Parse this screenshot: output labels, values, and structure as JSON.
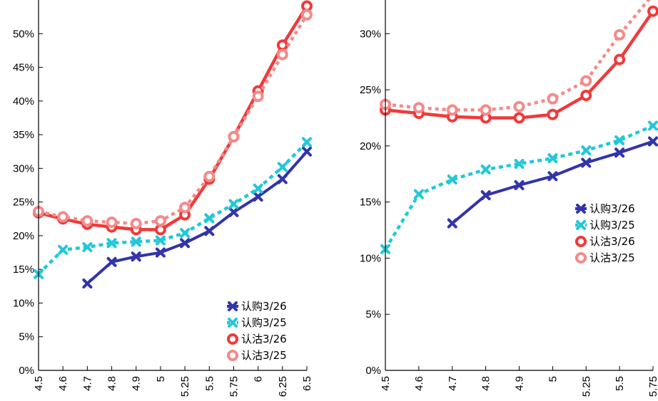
{
  "colors": {
    "call_326": "#3333aa",
    "call_325": "#22c8d8",
    "put_326": "#f03a3a",
    "put_325": "#f58a8a",
    "axis": "#000000"
  },
  "chart_data": [
    {
      "type": "line",
      "title": "",
      "xlabel": "",
      "ylabel": "",
      "categories": [
        "4.5",
        "4.6",
        "4.7",
        "4.8",
        "4.9",
        "5",
        "5.25",
        "5.5",
        "5.75",
        "6",
        "6.25",
        "6.5"
      ],
      "ylim": [
        0,
        55
      ],
      "yticks": [
        0,
        5,
        10,
        15,
        20,
        25,
        30,
        35,
        40,
        45,
        50
      ],
      "ytick_labels": [
        "0%",
        "5%",
        "10%",
        "15%",
        "20%",
        "25%",
        "30%",
        "35%",
        "40%",
        "45%",
        "50%"
      ],
      "legend_position": "bottom-right",
      "series": [
        {
          "name": "认购3/26",
          "style": "call_326",
          "values": [
            null,
            null,
            12.9,
            16.1,
            16.9,
            17.5,
            18.9,
            20.7,
            23.5,
            25.8,
            28.4,
            32.5
          ]
        },
        {
          "name": "认购3/25",
          "style": "call_325",
          "values": [
            14.3,
            17.9,
            18.3,
            18.9,
            19.1,
            19.3,
            20.4,
            22.6,
            24.7,
            27.0,
            30.2,
            33.9
          ]
        },
        {
          "name": "认沽3/26",
          "style": "put_326",
          "values": [
            23.4,
            22.5,
            21.7,
            21.3,
            20.9,
            20.9,
            23.1,
            28.4,
            34.7,
            41.5,
            48.3,
            54.1
          ]
        },
        {
          "name": "认沽3/25",
          "style": "put_325",
          "values": [
            23.6,
            22.8,
            22.2,
            22.0,
            21.8,
            22.2,
            24.2,
            28.8,
            34.7,
            40.7,
            46.9,
            52.8
          ]
        }
      ]
    },
    {
      "type": "line",
      "title": "",
      "xlabel": "",
      "ylabel": "",
      "categories": [
        "4.5",
        "4.6",
        "4.7",
        "4.8",
        "4.9",
        "5",
        "5.25",
        "5.5",
        "5.75"
      ],
      "ylim": [
        0,
        33
      ],
      "yticks": [
        0,
        5,
        10,
        15,
        20,
        25,
        30
      ],
      "ytick_labels": [
        "0%",
        "5%",
        "10%",
        "15%",
        "20%",
        "25%",
        "30%"
      ],
      "legend_position": "center-right",
      "series": [
        {
          "name": "认购3/26",
          "style": "call_326",
          "values": [
            null,
            null,
            13.1,
            15.6,
            16.5,
            17.3,
            18.5,
            19.4,
            20.4
          ]
        },
        {
          "name": "认购3/25",
          "style": "call_325",
          "values": [
            10.8,
            15.7,
            17.0,
            17.9,
            18.4,
            18.9,
            19.6,
            20.5,
            21.8
          ]
        },
        {
          "name": "认沽3/26",
          "style": "put_326",
          "values": [
            23.2,
            22.9,
            22.6,
            22.5,
            22.5,
            22.8,
            24.5,
            27.7,
            32.0
          ]
        },
        {
          "name": "认沽3/25",
          "style": "put_325",
          "values": [
            23.7,
            23.4,
            23.2,
            23.2,
            23.5,
            24.2,
            25.8,
            29.9,
            33.5
          ]
        }
      ]
    }
  ]
}
